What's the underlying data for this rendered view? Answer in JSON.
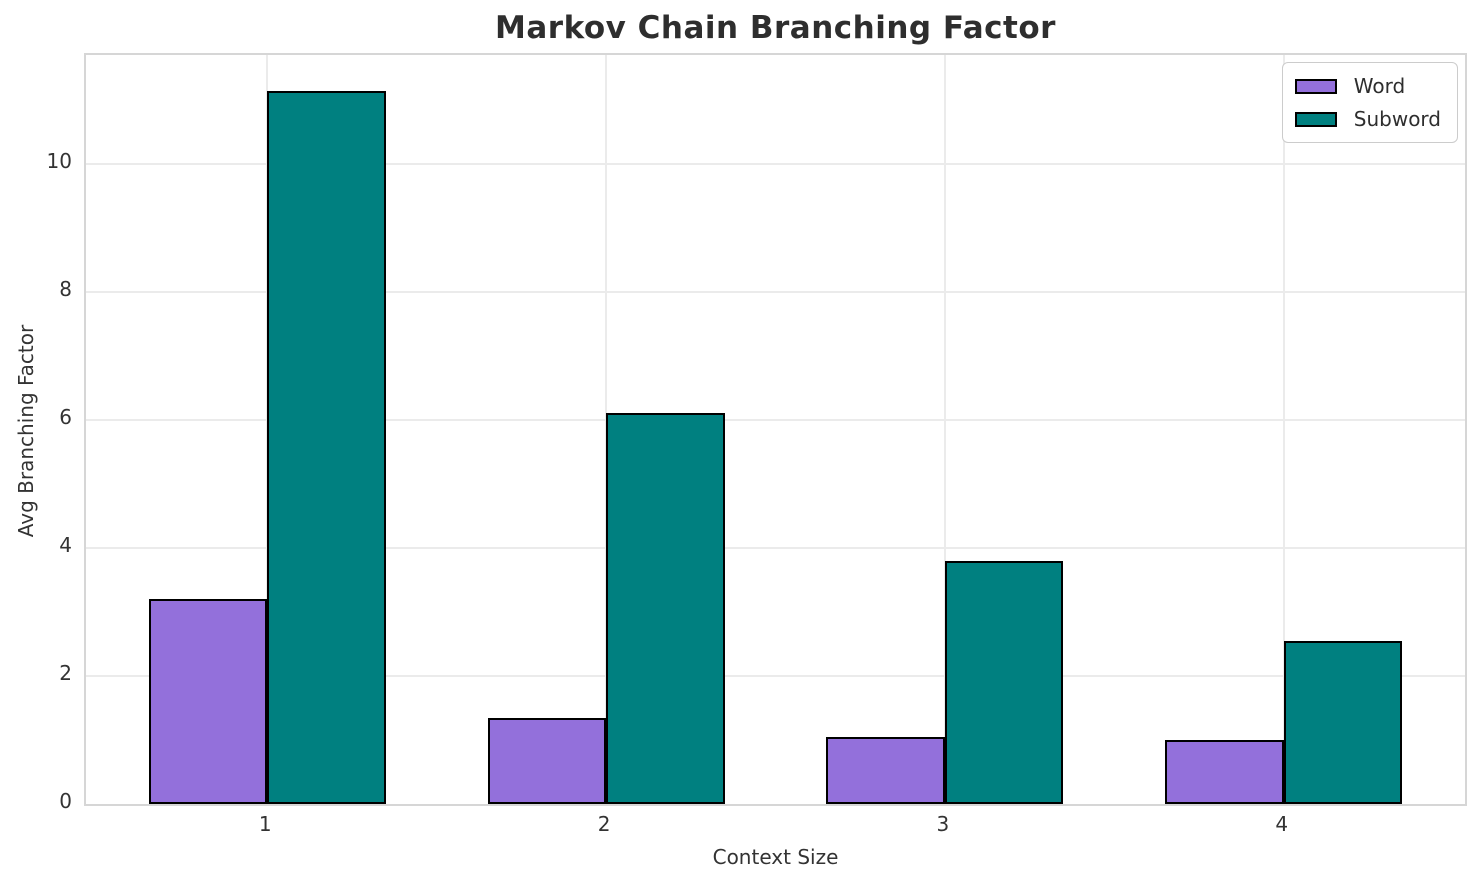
{
  "chart_data": {
    "type": "bar",
    "title": "Markov Chain Branching Factor",
    "xlabel": "Context Size",
    "ylabel": "Avg Branching Factor",
    "categories": [
      "1",
      "2",
      "3",
      "4"
    ],
    "series": [
      {
        "name": "Word",
        "color": "#9370DB",
        "values": [
          3.2,
          1.34,
          1.04,
          1.0
        ]
      },
      {
        "name": "Subword",
        "color": "#008080",
        "values": [
          11.13,
          6.11,
          3.79,
          2.54
        ]
      }
    ],
    "bar_edge_color": "#000000",
    "ylim": [
      0,
      11.7
    ],
    "yticks": [
      0,
      2,
      4,
      6,
      8,
      10
    ],
    "grid": true,
    "legend_position": "upper right",
    "legend_labels": [
      "Word",
      "Subword"
    ]
  }
}
